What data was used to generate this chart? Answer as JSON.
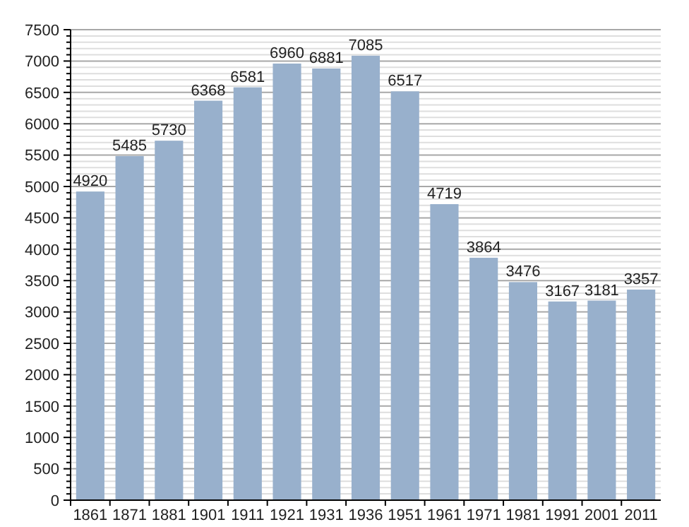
{
  "chart_data": {
    "type": "bar",
    "categories": [
      "1861",
      "1871",
      "1881",
      "1901",
      "1911",
      "1921",
      "1931",
      "1936",
      "1951",
      "1961",
      "1971",
      "1981",
      "1991",
      "2001",
      "2011"
    ],
    "values": [
      4920,
      5485,
      5730,
      6368,
      6581,
      6960,
      6881,
      7085,
      6517,
      4719,
      3864,
      3476,
      3167,
      3181,
      3357
    ],
    "color": "#98b0cc",
    "data_labels": true,
    "grid": "y",
    "ylim": [
      0,
      7500
    ],
    "yticks": [
      0,
      {
        "value": 100,
        "label": null
      },
      {
        "value": 200,
        "label": null
      },
      {
        "value": 300,
        "label": null
      },
      {
        "value": 400,
        "label": null
      },
      500,
      {
        "value": 600,
        "label": null
      },
      {
        "value": 700,
        "label": null
      },
      {
        "value": 800,
        "label": null
      },
      {
        "value": 900,
        "label": null
      },
      1000,
      {
        "value": 1100,
        "label": null
      },
      {
        "value": 1200,
        "label": null
      },
      {
        "value": 1300,
        "label": null
      },
      {
        "value": 1400,
        "label": null
      },
      1500,
      {
        "value": 1600,
        "label": null
      },
      {
        "value": 1700,
        "label": null
      },
      {
        "value": 1800,
        "label": null
      },
      {
        "value": 1900,
        "label": null
      },
      2000,
      {
        "value": 2100,
        "label": null
      },
      {
        "value": 2200,
        "label": null
      },
      {
        "value": 2300,
        "label": null
      },
      {
        "value": 2400,
        "label": null
      },
      2500,
      {
        "value": 2600,
        "label": null
      },
      {
        "value": 2700,
        "label": null
      },
      {
        "value": 2800,
        "label": null
      },
      {
        "value": 2900,
        "label": null
      },
      3000,
      {
        "value": 3100,
        "label": null
      },
      {
        "value": 3200,
        "label": null
      },
      {
        "value": 3300,
        "label": null
      },
      {
        "value": 3400,
        "label": null
      },
      3500,
      {
        "value": 3600,
        "label": null
      },
      {
        "value": 3700,
        "label": null
      },
      {
        "value": 3800,
        "label": null
      },
      {
        "value": 3900,
        "label": null
      },
      4000,
      {
        "value": 4100,
        "label": null
      },
      {
        "value": 4200,
        "label": null
      },
      {
        "value": 4300,
        "label": null
      },
      {
        "value": 4400,
        "label": null
      },
      4500,
      {
        "value": 4600,
        "label": null
      },
      {
        "value": 4700,
        "label": null
      },
      {
        "value": 4800,
        "label": null
      },
      {
        "value": 4900,
        "label": null
      },
      5000,
      {
        "value": 5100,
        "label": null
      },
      {
        "value": 5200,
        "label": null
      },
      {
        "value": 5300,
        "label": null
      },
      {
        "value": 5400,
        "label": null
      },
      5500,
      {
        "value": 5600,
        "label": null
      },
      {
        "value": 5700,
        "label": null
      },
      {
        "value": 5800,
        "label": null
      },
      {
        "value": 5900,
        "label": null
      },
      6000,
      {
        "value": 6100,
        "label": null
      },
      {
        "value": 6200,
        "label": null
      },
      {
        "value": 6300,
        "label": null
      },
      {
        "value": 6400,
        "label": null
      },
      6500,
      {
        "value": 6600,
        "label": null
      },
      {
        "value": 6700,
        "label": null
      },
      {
        "value": 6800,
        "label": null
      },
      {
        "value": 6900,
        "label": null
      },
      7000,
      {
        "value": 7100,
        "label": null
      },
      {
        "value": 7200,
        "label": null
      },
      {
        "value": 7300,
        "label": null
      },
      {
        "value": 7400,
        "label": null
      },
      7500
    ]
  }
}
